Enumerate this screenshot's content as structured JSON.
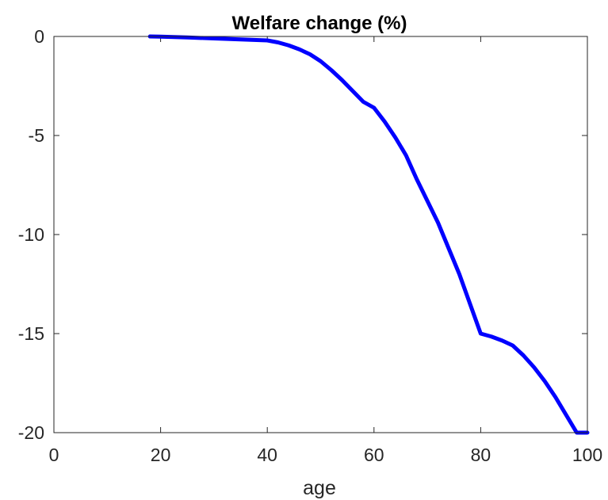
{
  "chart_data": {
    "type": "line",
    "title": "Welfare change (%)",
    "xlabel": "age",
    "ylabel": "",
    "xlim": [
      0,
      100
    ],
    "ylim": [
      -20,
      0
    ],
    "xticks": [
      0,
      20,
      40,
      60,
      80,
      100
    ],
    "yticks": [
      0,
      -5,
      -10,
      -15,
      -20
    ],
    "xtick_labels": [
      "0",
      "20",
      "40",
      "60",
      "80",
      "100"
    ],
    "ytick_labels": [
      "0",
      "-5",
      "-10",
      "-15",
      "-20"
    ],
    "grid": false,
    "series": [
      {
        "color": "#0000ff",
        "x": [
          18,
          20,
          25,
          30,
          35,
          40,
          42,
          44,
          46,
          48,
          50,
          52,
          54,
          56,
          58,
          60,
          62,
          64,
          66,
          68,
          70,
          72,
          74,
          76,
          78,
          80,
          82,
          84,
          86,
          88,
          90,
          92,
          94,
          96,
          98,
          99,
          100
        ],
        "y": [
          0.0,
          -0.01,
          -0.05,
          -0.1,
          -0.15,
          -0.2,
          -0.3,
          -0.45,
          -0.65,
          -0.9,
          -1.25,
          -1.7,
          -2.2,
          -2.75,
          -3.3,
          -3.6,
          -4.3,
          -5.1,
          -6.0,
          -7.2,
          -8.3,
          -9.4,
          -10.7,
          -12.0,
          -13.5,
          -15.0,
          -15.15,
          -15.35,
          -15.6,
          -16.1,
          -16.7,
          -17.4,
          -18.2,
          -19.1,
          -20.0,
          -20.0,
          -20.0
        ]
      }
    ]
  }
}
